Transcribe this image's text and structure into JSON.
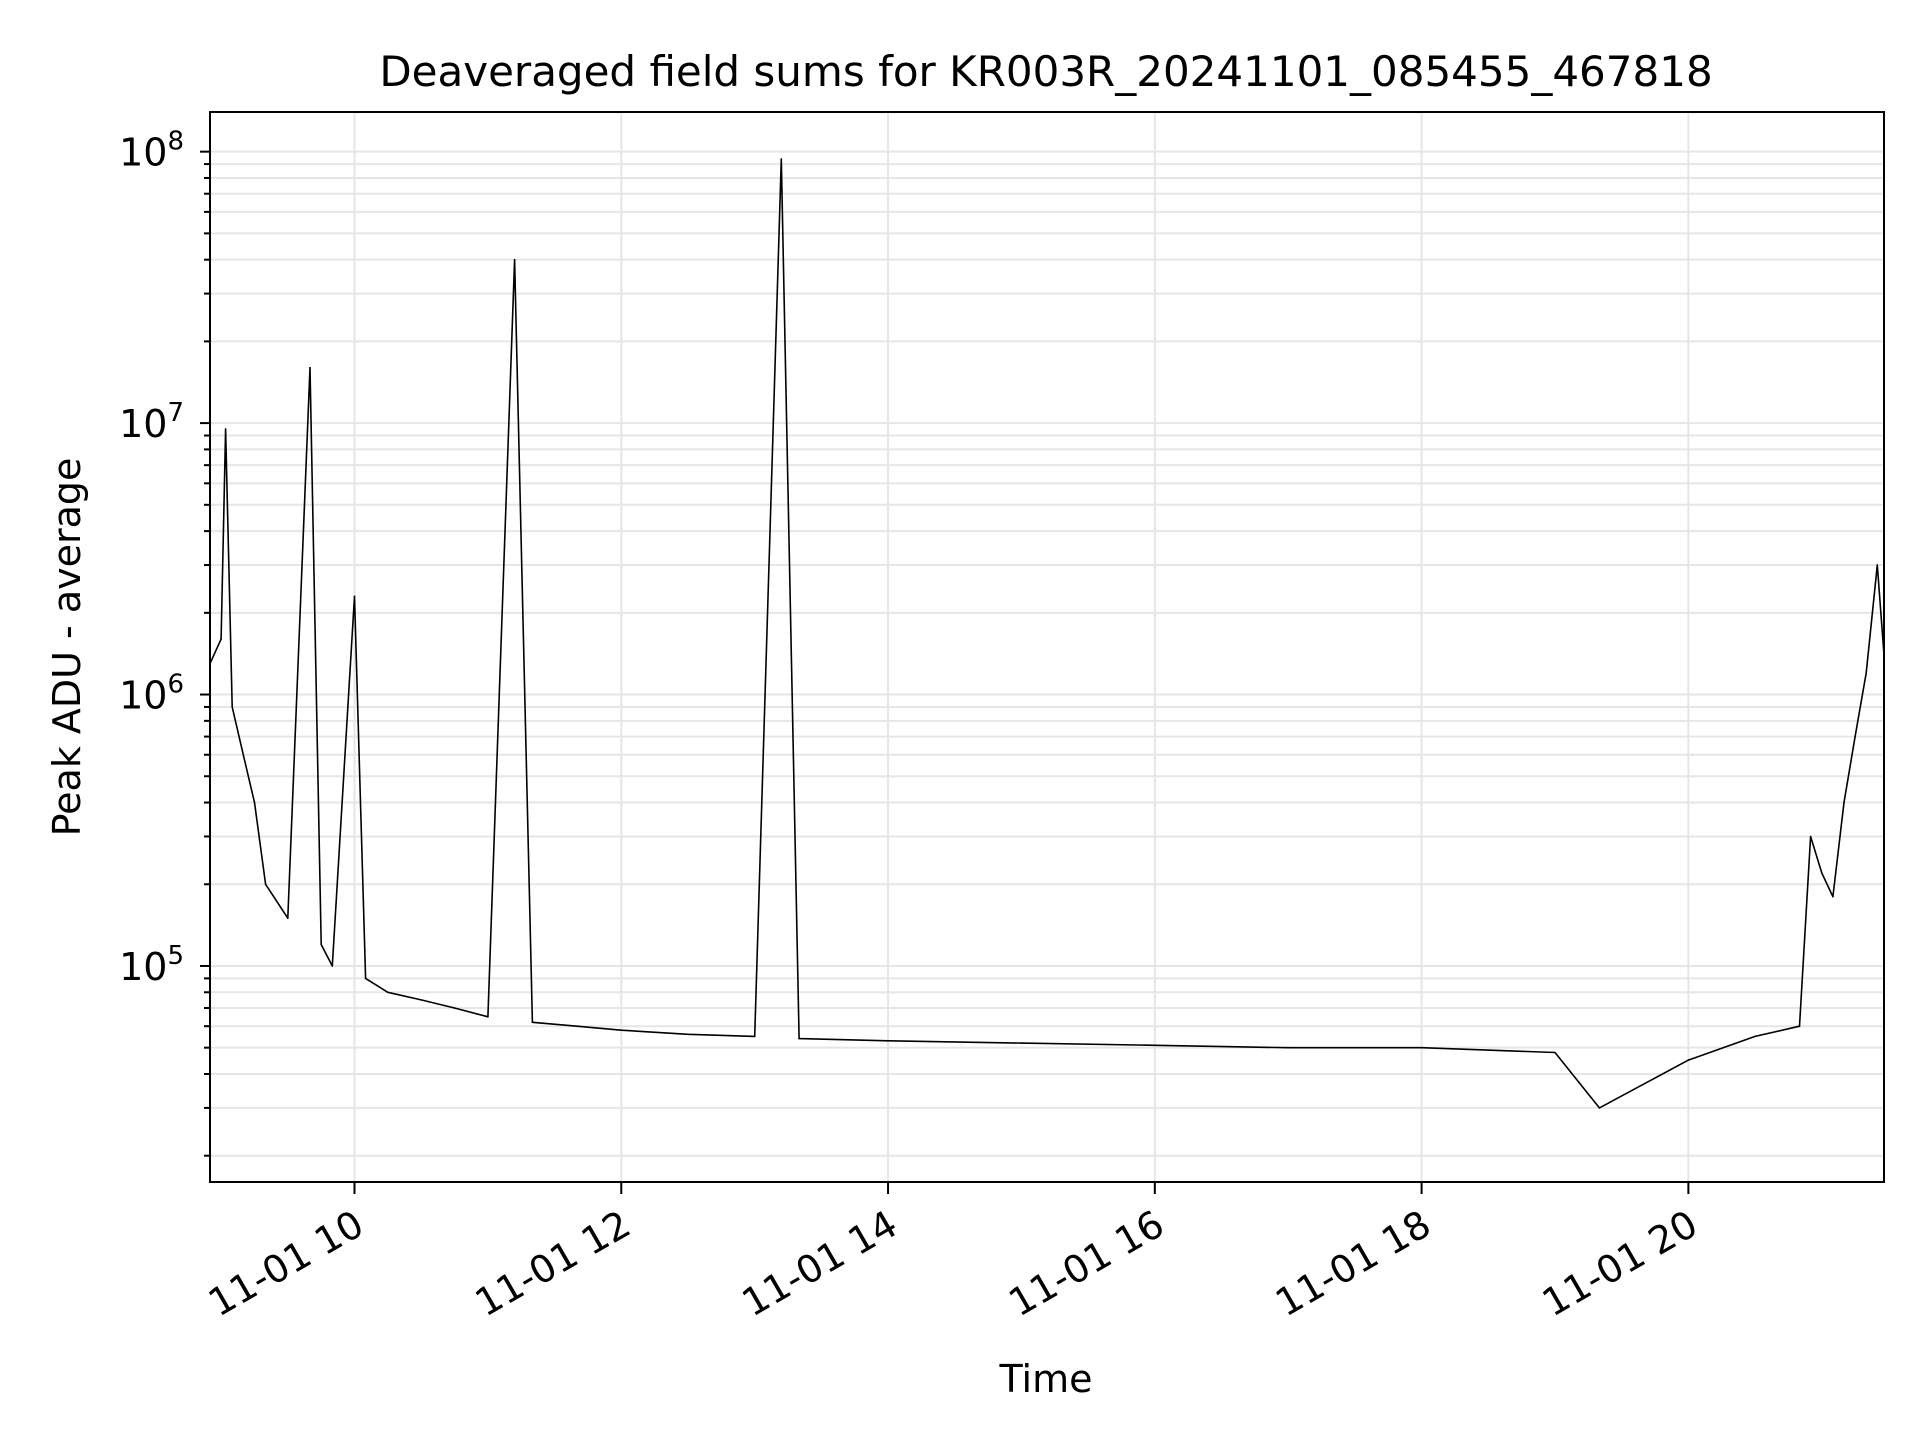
{
  "chart_data": {
    "type": "line",
    "title": "Deaveraged field sums for KR003R_20241101_085455_467818",
    "xlabel": "Time",
    "ylabel": "Peak ADU - average",
    "yscale": "log",
    "xlim": [
      "2024-11-01 08:55",
      "2024-11-01 21:28"
    ],
    "ylim": [
      16000,
      140000000
    ],
    "grid": true,
    "xticks": [
      {
        "t": "2024-11-01 10:00",
        "label": "11-01 10"
      },
      {
        "t": "2024-11-01 12:00",
        "label": "11-01 12"
      },
      {
        "t": "2024-11-01 14:00",
        "label": "11-01 14"
      },
      {
        "t": "2024-11-01 16:00",
        "label": "11-01 16"
      },
      {
        "t": "2024-11-01 18:00",
        "label": "11-01 18"
      },
      {
        "t": "2024-11-01 20:00",
        "label": "11-01 20"
      }
    ],
    "yticks": [
      {
        "v": 100000,
        "base": "10",
        "exp": "5"
      },
      {
        "v": 1000000,
        "base": "10",
        "exp": "6"
      },
      {
        "v": 10000000,
        "base": "10",
        "exp": "7"
      },
      {
        "v": 100000000,
        "base": "10",
        "exp": "8"
      }
    ],
    "series": [
      {
        "color": "#000000",
        "points": [
          [
            "2024-11-01 08:55",
            1300000
          ],
          [
            "2024-11-01 09:00",
            1600000
          ],
          [
            "2024-11-01 09:02",
            9500000
          ],
          [
            "2024-11-01 09:05",
            900000
          ],
          [
            "2024-11-01 09:10",
            600000
          ],
          [
            "2024-11-01 09:15",
            400000
          ],
          [
            "2024-11-01 09:20",
            200000
          ],
          [
            "2024-11-01 09:30",
            150000
          ],
          [
            "2024-11-01 09:40",
            16000000
          ],
          [
            "2024-11-01 09:45",
            120000
          ],
          [
            "2024-11-01 09:50",
            100000
          ],
          [
            "2024-11-01 10:00",
            2300000
          ],
          [
            "2024-11-01 10:05",
            90000
          ],
          [
            "2024-11-01 10:15",
            80000
          ],
          [
            "2024-11-01 10:30",
            75000
          ],
          [
            "2024-11-01 10:45",
            70000
          ],
          [
            "2024-11-01 11:00",
            65000
          ],
          [
            "2024-11-01 11:12",
            40000000
          ],
          [
            "2024-11-01 11:20",
            62000
          ],
          [
            "2024-11-01 11:40",
            60000
          ],
          [
            "2024-11-01 12:00",
            58000
          ],
          [
            "2024-11-01 12:30",
            56000
          ],
          [
            "2024-11-01 13:00",
            55000
          ],
          [
            "2024-11-01 13:12",
            94000000
          ],
          [
            "2024-11-01 13:20",
            54000
          ],
          [
            "2024-11-01 14:00",
            53000
          ],
          [
            "2024-11-01 15:00",
            52000
          ],
          [
            "2024-11-01 16:00",
            51000
          ],
          [
            "2024-11-01 17:00",
            50000
          ],
          [
            "2024-11-01 18:00",
            50000
          ],
          [
            "2024-11-01 19:00",
            48000
          ],
          [
            "2024-11-01 19:20",
            30000
          ],
          [
            "2024-11-01 20:00",
            45000
          ],
          [
            "2024-11-01 20:30",
            55000
          ],
          [
            "2024-11-01 20:50",
            60000
          ],
          [
            "2024-11-01 20:55",
            300000
          ],
          [
            "2024-11-01 21:00",
            220000
          ],
          [
            "2024-11-01 21:05",
            180000
          ],
          [
            "2024-11-01 21:10",
            400000
          ],
          [
            "2024-11-01 21:15",
            700000
          ],
          [
            "2024-11-01 21:20",
            1200000
          ],
          [
            "2024-11-01 21:25",
            3000000
          ],
          [
            "2024-11-01 21:28",
            1400000
          ]
        ]
      }
    ]
  }
}
